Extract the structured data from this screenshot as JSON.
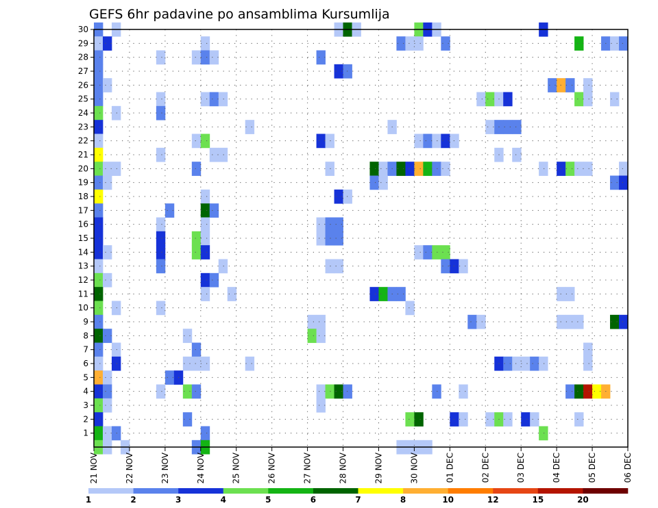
{
  "chart_data": {
    "type": "heatmap",
    "title": "GEFS 6hr padavine po ansamblima Kursumlija",
    "xlabel": "",
    "ylabel": "",
    "y_ticks": [
      "1",
      "2",
      "3",
      "4",
      "5",
      "6",
      "7",
      "8",
      "9",
      "10",
      "11",
      "12",
      "13",
      "14",
      "15",
      "16",
      "17",
      "18",
      "19",
      "20",
      "21",
      "22",
      "23",
      "24",
      "25",
      "26",
      "27",
      "28",
      "29",
      "30"
    ],
    "y_range": [
      0,
      30
    ],
    "x_range": [
      0,
      60
    ],
    "x_ticks": [
      {
        "label": "21 NOV",
        "x": 0
      },
      {
        "label": "22 NOV",
        "x": 4
      },
      {
        "label": "23 NOV",
        "x": 8
      },
      {
        "label": "24 NOV",
        "x": 12
      },
      {
        "label": "25 NOV",
        "x": 16
      },
      {
        "label": "26 NOV",
        "x": 20
      },
      {
        "label": "27 NOV",
        "x": 24
      },
      {
        "label": "28 NOV",
        "x": 28
      },
      {
        "label": "29 NOV",
        "x": 32
      },
      {
        "label": "30 NOV",
        "x": 36
      },
      {
        "label": "01 DEC",
        "x": 40
      },
      {
        "label": "02 DEC",
        "x": 44
      },
      {
        "label": "03 DEC",
        "x": 48
      },
      {
        "label": "04 DEC",
        "x": 52
      },
      {
        "label": "05 DEC",
        "x": 56
      },
      {
        "label": "06 DEC",
        "x": 60
      }
    ],
    "grid": true,
    "colorbar": {
      "ticks": [
        "1",
        "2",
        "3",
        "4",
        "5",
        "6",
        "7",
        "8",
        "10",
        "12",
        "15",
        "20"
      ],
      "colors": [
        "#b4c8f8",
        "#5a82ec",
        "#1632d8",
        "#6ce050",
        "#14b414",
        "#006400",
        "#ffff00",
        "#ffaf32",
        "#ff7d00",
        "#e64614",
        "#b41400",
        "#6e0000"
      ]
    },
    "colors": [
      "#b4c8f8",
      "#5a82ec",
      "#1632d8",
      "#6ce050",
      "#14b414",
      "#006400",
      "#ffff00",
      "#ffaf32",
      "#ff7d00",
      "#e64614",
      "#b41400",
      "#6e0000"
    ],
    "cells": [
      [
        30,
        0,
        1
      ],
      [
        30,
        2,
        0
      ],
      [
        30,
        27,
        0
      ],
      [
        30,
        28,
        5
      ],
      [
        30,
        29,
        0
      ],
      [
        30,
        36,
        3
      ],
      [
        30,
        37,
        2
      ],
      [
        30,
        38,
        0
      ],
      [
        30,
        50,
        2
      ],
      [
        29,
        0,
        0
      ],
      [
        29,
        1,
        2
      ],
      [
        29,
        12,
        0
      ],
      [
        29,
        34,
        1
      ],
      [
        29,
        35,
        0
      ],
      [
        29,
        36,
        0
      ],
      [
        29,
        39,
        1
      ],
      [
        29,
        54,
        4
      ],
      [
        29,
        57,
        1
      ],
      [
        29,
        58,
        0
      ],
      [
        29,
        59,
        1
      ],
      [
        28,
        0,
        1
      ],
      [
        28,
        7,
        0
      ],
      [
        28,
        11,
        0
      ],
      [
        28,
        12,
        1
      ],
      [
        28,
        13,
        0
      ],
      [
        28,
        25,
        1
      ],
      [
        27,
        0,
        1
      ],
      [
        27,
        27,
        2
      ],
      [
        27,
        28,
        1
      ],
      [
        26,
        0,
        1
      ],
      [
        26,
        1,
        0
      ],
      [
        26,
        51,
        1
      ],
      [
        26,
        52,
        7
      ],
      [
        26,
        53,
        1
      ],
      [
        26,
        55,
        0
      ],
      [
        25,
        0,
        1
      ],
      [
        25,
        7,
        0
      ],
      [
        25,
        12,
        0
      ],
      [
        25,
        13,
        1
      ],
      [
        25,
        14,
        0
      ],
      [
        25,
        43,
        0
      ],
      [
        25,
        44,
        3
      ],
      [
        25,
        45,
        0
      ],
      [
        25,
        46,
        2
      ],
      [
        25,
        54,
        3
      ],
      [
        25,
        55,
        0
      ],
      [
        25,
        58,
        0
      ],
      [
        24,
        0,
        3
      ],
      [
        24,
        2,
        0
      ],
      [
        24,
        7,
        1
      ],
      [
        23,
        0,
        2
      ],
      [
        23,
        17,
        0
      ],
      [
        23,
        33,
        0
      ],
      [
        23,
        44,
        0
      ],
      [
        23,
        45,
        1
      ],
      [
        23,
        46,
        1
      ],
      [
        23,
        47,
        1
      ],
      [
        22,
        0,
        0
      ],
      [
        22,
        11,
        0
      ],
      [
        22,
        12,
        3
      ],
      [
        22,
        25,
        2
      ],
      [
        22,
        26,
        0
      ],
      [
        22,
        36,
        0
      ],
      [
        22,
        37,
        1
      ],
      [
        22,
        38,
        0
      ],
      [
        22,
        39,
        2
      ],
      [
        22,
        40,
        0
      ],
      [
        21,
        0,
        6
      ],
      [
        21,
        7,
        0
      ],
      [
        21,
        13,
        0
      ],
      [
        21,
        14,
        0
      ],
      [
        21,
        45,
        0
      ],
      [
        21,
        47,
        0
      ],
      [
        20,
        0,
        3
      ],
      [
        20,
        1,
        0
      ],
      [
        20,
        2,
        0
      ],
      [
        20,
        11,
        1
      ],
      [
        20,
        26,
        0
      ],
      [
        20,
        31,
        5
      ],
      [
        20,
        32,
        0
      ],
      [
        20,
        33,
        1
      ],
      [
        20,
        34,
        5
      ],
      [
        20,
        35,
        2
      ],
      [
        20,
        36,
        7
      ],
      [
        20,
        37,
        4
      ],
      [
        20,
        38,
        1
      ],
      [
        20,
        39,
        0
      ],
      [
        20,
        50,
        0
      ],
      [
        20,
        52,
        2
      ],
      [
        20,
        53,
        3
      ],
      [
        20,
        54,
        0
      ],
      [
        20,
        55,
        0
      ],
      [
        20,
        59,
        0
      ],
      [
        19,
        0,
        1
      ],
      [
        19,
        1,
        0
      ],
      [
        19,
        31,
        1
      ],
      [
        19,
        32,
        0
      ],
      [
        19,
        58,
        1
      ],
      [
        19,
        59,
        2
      ],
      [
        18,
        0,
        6
      ],
      [
        18,
        12,
        0
      ],
      [
        18,
        27,
        2
      ],
      [
        18,
        28,
        0
      ],
      [
        17,
        0,
        1
      ],
      [
        17,
        8,
        1
      ],
      [
        17,
        12,
        5
      ],
      [
        17,
        13,
        1
      ],
      [
        16,
        0,
        2
      ],
      [
        16,
        7,
        0
      ],
      [
        16,
        12,
        0
      ],
      [
        16,
        25,
        0
      ],
      [
        16,
        26,
        1
      ],
      [
        16,
        27,
        1
      ],
      [
        15,
        0,
        2
      ],
      [
        15,
        7,
        2
      ],
      [
        15,
        11,
        3
      ],
      [
        15,
        12,
        0
      ],
      [
        15,
        25,
        0
      ],
      [
        15,
        26,
        1
      ],
      [
        15,
        27,
        1
      ],
      [
        14,
        0,
        2
      ],
      [
        14,
        1,
        0
      ],
      [
        14,
        7,
        2
      ],
      [
        14,
        11,
        3
      ],
      [
        14,
        12,
        2
      ],
      [
        14,
        36,
        0
      ],
      [
        14,
        37,
        1
      ],
      [
        14,
        38,
        3
      ],
      [
        14,
        39,
        3
      ],
      [
        13,
        0,
        0
      ],
      [
        13,
        7,
        1
      ],
      [
        13,
        14,
        0
      ],
      [
        13,
        26,
        0
      ],
      [
        13,
        27,
        0
      ],
      [
        13,
        39,
        1
      ],
      [
        13,
        40,
        2
      ],
      [
        13,
        41,
        0
      ],
      [
        12,
        0,
        3
      ],
      [
        12,
        1,
        0
      ],
      [
        12,
        12,
        2
      ],
      [
        12,
        13,
        1
      ],
      [
        11,
        0,
        5
      ],
      [
        11,
        12,
        0
      ],
      [
        11,
        15,
        0
      ],
      [
        11,
        31,
        2
      ],
      [
        11,
        32,
        4
      ],
      [
        11,
        33,
        1
      ],
      [
        11,
        34,
        1
      ],
      [
        11,
        52,
        0
      ],
      [
        11,
        53,
        0
      ],
      [
        10,
        0,
        3
      ],
      [
        10,
        2,
        0
      ],
      [
        10,
        7,
        0
      ],
      [
        10,
        35,
        0
      ],
      [
        9,
        0,
        1
      ],
      [
        9,
        24,
        0
      ],
      [
        9,
        25,
        0
      ],
      [
        9,
        42,
        1
      ],
      [
        9,
        43,
        0
      ],
      [
        9,
        52,
        0
      ],
      [
        9,
        53,
        0
      ],
      [
        9,
        54,
        0
      ],
      [
        9,
        58,
        5
      ],
      [
        9,
        59,
        2
      ],
      [
        8,
        0,
        5
      ],
      [
        8,
        1,
        1
      ],
      [
        8,
        10,
        0
      ],
      [
        8,
        24,
        3
      ],
      [
        8,
        25,
        0
      ],
      [
        7,
        0,
        1
      ],
      [
        7,
        2,
        0
      ],
      [
        7,
        11,
        1
      ],
      [
        7,
        55,
        0
      ],
      [
        6,
        0,
        0
      ],
      [
        6,
        2,
        2
      ],
      [
        6,
        10,
        0
      ],
      [
        6,
        11,
        0
      ],
      [
        6,
        12,
        0
      ],
      [
        6,
        17,
        0
      ],
      [
        6,
        45,
        2
      ],
      [
        6,
        46,
        1
      ],
      [
        6,
        47,
        0
      ],
      [
        6,
        48,
        0
      ],
      [
        6,
        49,
        1
      ],
      [
        6,
        50,
        0
      ],
      [
        6,
        55,
        0
      ],
      [
        5,
        0,
        7
      ],
      [
        5,
        1,
        0
      ],
      [
        5,
        8,
        1
      ],
      [
        5,
        9,
        2
      ],
      [
        4,
        0,
        2
      ],
      [
        4,
        1,
        1
      ],
      [
        4,
        7,
        0
      ],
      [
        4,
        10,
        3
      ],
      [
        4,
        11,
        1
      ],
      [
        4,
        25,
        0
      ],
      [
        4,
        26,
        3
      ],
      [
        4,
        27,
        5
      ],
      [
        4,
        28,
        1
      ],
      [
        4,
        38,
        1
      ],
      [
        4,
        41,
        0
      ],
      [
        4,
        53,
        1
      ],
      [
        4,
        54,
        5
      ],
      [
        4,
        55,
        10
      ],
      [
        4,
        56,
        6
      ],
      [
        4,
        57,
        7
      ],
      [
        3,
        0,
        3
      ],
      [
        3,
        1,
        0
      ],
      [
        3,
        25,
        0
      ],
      [
        2,
        0,
        2
      ],
      [
        2,
        10,
        1
      ],
      [
        2,
        35,
        3
      ],
      [
        2,
        36,
        5
      ],
      [
        2,
        40,
        2
      ],
      [
        2,
        41,
        0
      ],
      [
        2,
        44,
        0
      ],
      [
        2,
        45,
        3
      ],
      [
        2,
        46,
        0
      ],
      [
        2,
        48,
        2
      ],
      [
        2,
        49,
        0
      ],
      [
        2,
        54,
        0
      ],
      [
        1,
        0,
        4
      ],
      [
        1,
        1,
        0
      ],
      [
        1,
        2,
        1
      ],
      [
        1,
        12,
        1
      ],
      [
        1,
        50,
        3
      ],
      [
        0,
        0,
        3
      ],
      [
        0,
        1,
        0
      ],
      [
        0,
        3,
        0
      ],
      [
        0,
        11,
        1
      ],
      [
        0,
        12,
        4
      ],
      [
        0,
        34,
        0
      ],
      [
        0,
        35,
        0
      ],
      [
        0,
        36,
        0
      ],
      [
        0,
        37,
        0
      ]
    ]
  }
}
